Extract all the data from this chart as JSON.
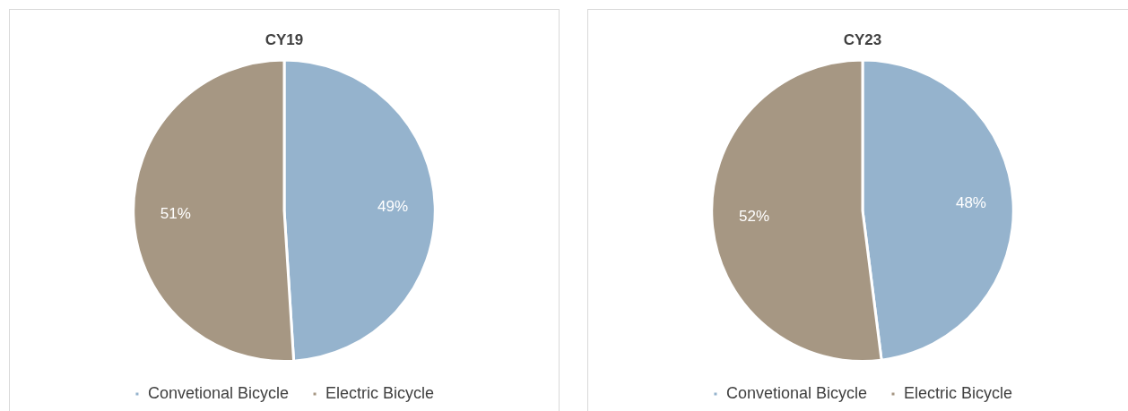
{
  "chart_data": [
    {
      "type": "pie",
      "title": "CY19",
      "categories": [
        "Convetional Bicycle",
        "Electric Bicycle"
      ],
      "values": [
        49,
        51
      ],
      "value_labels": [
        "49%",
        "51%"
      ],
      "colors": [
        "#95b3cd",
        "#a69783"
      ],
      "legend": "bottom"
    },
    {
      "type": "pie",
      "title": "CY23",
      "categories": [
        "Convetional Bicycle",
        "Electric Bicycle"
      ],
      "values": [
        48,
        52
      ],
      "value_labels": [
        "48%",
        "52%"
      ],
      "colors": [
        "#95b3cd",
        "#a69783"
      ],
      "legend": "bottom"
    }
  ]
}
